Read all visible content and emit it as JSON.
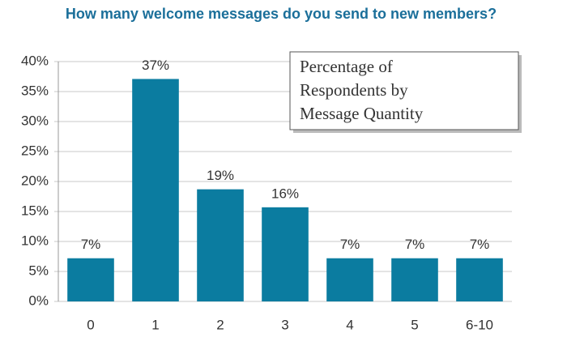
{
  "chart_data": {
    "type": "bar",
    "title": "How many welcome messages do you send to new members?",
    "annotation": [
      "Percentage of",
      "Respondents by",
      "Message Quantity"
    ],
    "categories": [
      "0",
      "1",
      "2",
      "3",
      "4",
      "5",
      "6-10"
    ],
    "values": [
      7.2,
      37.1,
      18.7,
      15.7,
      7.2,
      7.2,
      7.2
    ],
    "value_labels": [
      "7%",
      "37%",
      "19%",
      "16%",
      "7%",
      "7%",
      "7%"
    ],
    "color": "#0b7ca0",
    "ylim": [
      0,
      40
    ],
    "yticks": [
      {
        "value": 0,
        "label": "0%"
      },
      {
        "value": 5,
        "label": "5%"
      },
      {
        "value": 10,
        "label": "10%"
      },
      {
        "value": 15,
        "label": "15%"
      },
      {
        "value": 20,
        "label": "20%"
      },
      {
        "value": 25,
        "label": "25%"
      },
      {
        "value": 30,
        "label": "30%"
      },
      {
        "value": 35,
        "label": "35%"
      },
      {
        "value": 40,
        "label": "40%"
      }
    ],
    "grid": true
  }
}
